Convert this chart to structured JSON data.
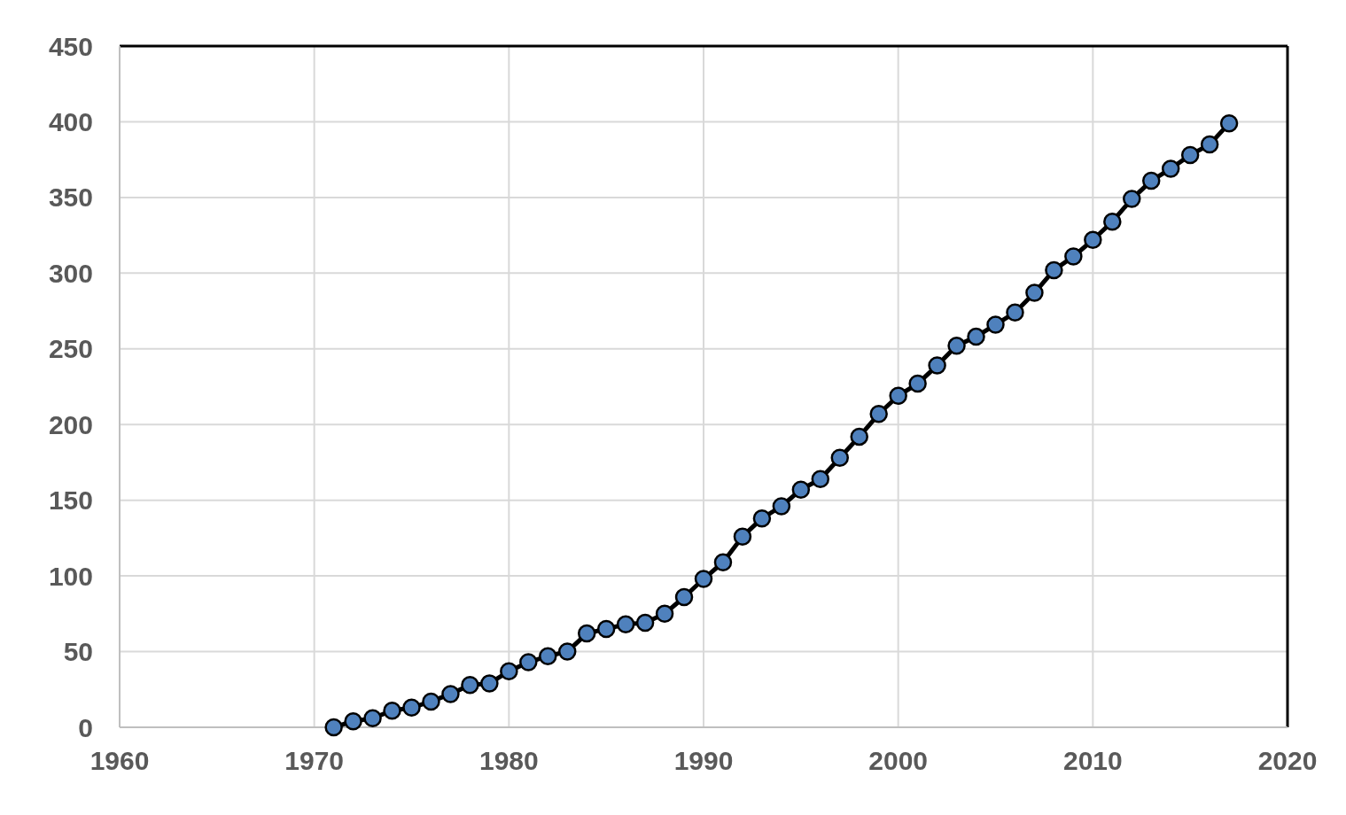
{
  "chart_data": {
    "type": "line",
    "x": [
      1971,
      1972,
      1973,
      1974,
      1975,
      1976,
      1977,
      1978,
      1979,
      1980,
      1981,
      1982,
      1983,
      1984,
      1985,
      1986,
      1987,
      1988,
      1989,
      1990,
      1991,
      1992,
      1993,
      1994,
      1995,
      1996,
      1997,
      1998,
      1999,
      2000,
      2001,
      2002,
      2003,
      2004,
      2005,
      2006,
      2007,
      2008,
      2009,
      2010,
      2011,
      2012,
      2013,
      2014,
      2015,
      2016,
      2017
    ],
    "series": [
      {
        "color": "#4f81bd",
        "values": [
          0,
          4,
          6,
          11,
          13,
          17,
          22,
          28,
          29,
          37,
          43,
          47,
          50,
          62,
          65,
          68,
          69,
          75,
          86,
          98,
          109,
          126,
          138,
          146,
          157,
          164,
          178,
          192,
          207,
          219,
          227,
          239,
          252,
          258,
          266,
          274,
          287,
          302,
          311,
          322,
          334,
          349,
          361,
          369,
          378,
          385,
          399
        ]
      }
    ],
    "xlim": [
      1960,
      2020
    ],
    "xticks": [
      1960,
      1970,
      1980,
      1990,
      2000,
      2010,
      2020
    ],
    "ylim": [
      0,
      450
    ],
    "yticks": [
      0,
      50,
      100,
      150,
      200,
      250,
      300,
      350,
      400,
      450
    ],
    "grid": true,
    "marker": "circle",
    "line_style": "solid"
  }
}
